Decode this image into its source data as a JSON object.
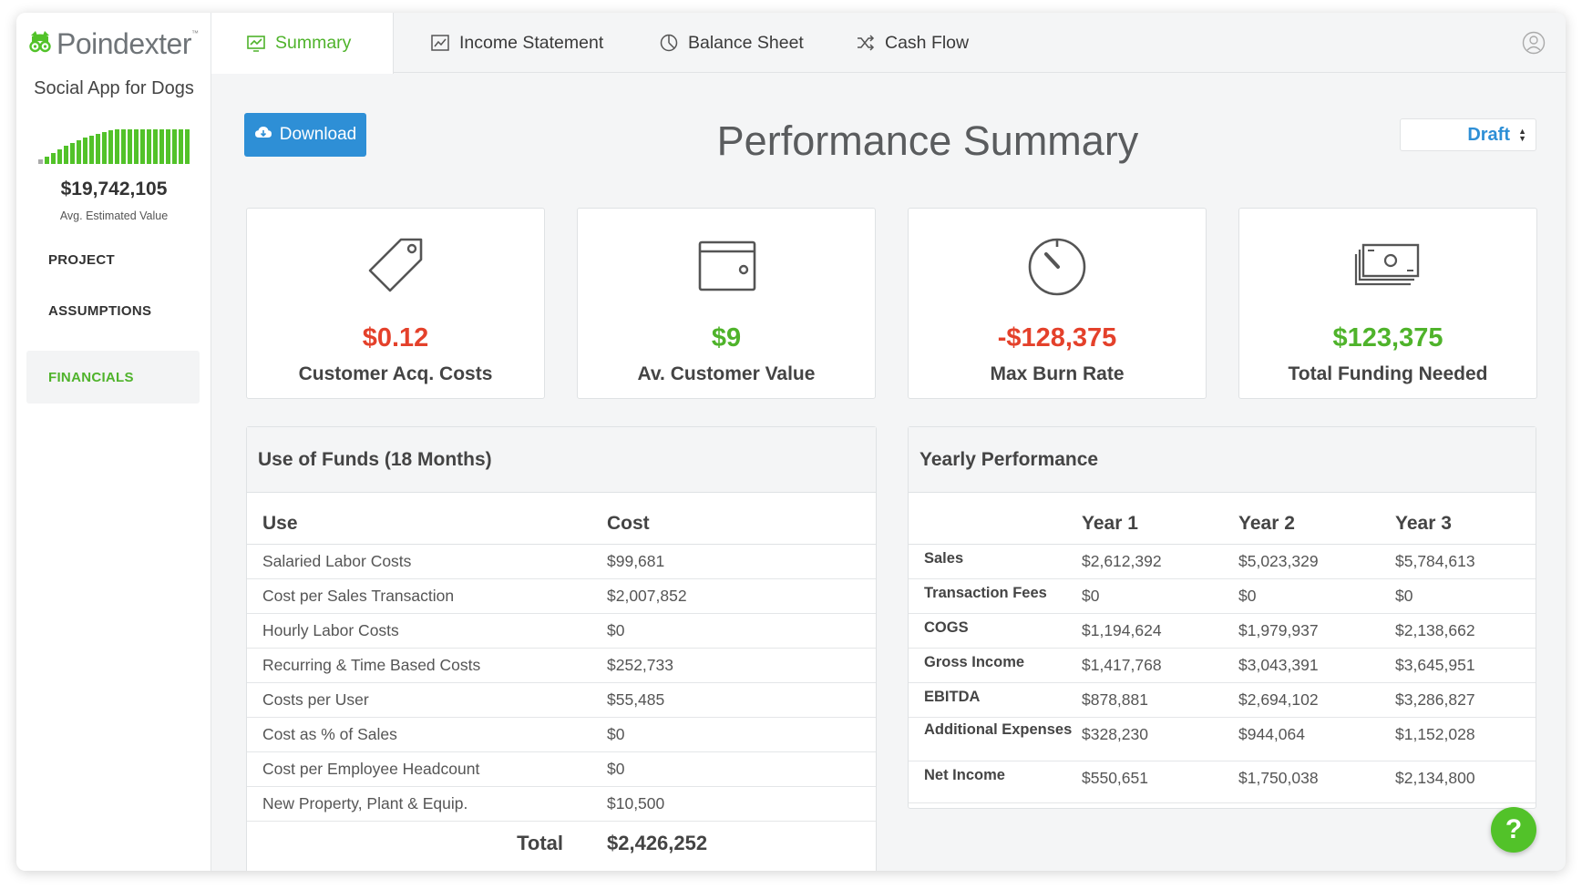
{
  "brand": {
    "name": "Poindexter",
    "tm": "™"
  },
  "project": {
    "name": "Social App for Dogs",
    "value": "$19,742,105",
    "value_label": "Avg. Estimated Value",
    "sparkline_heights": [
      0.12,
      0.22,
      0.32,
      0.42,
      0.52,
      0.6,
      0.68,
      0.76,
      0.82,
      0.88,
      0.93,
      0.97,
      1,
      1,
      1,
      1,
      1,
      1,
      1,
      1,
      1,
      1,
      1,
      1
    ],
    "sparkline_color": "#52c229"
  },
  "sidebar": {
    "items": [
      {
        "label": "PROJECT",
        "active": false
      },
      {
        "label": "ASSUMPTIONS",
        "active": false
      },
      {
        "label": "FINANCIALS",
        "active": true
      }
    ]
  },
  "tabs": [
    {
      "label": "Summary",
      "icon": "summary-icon",
      "active": true
    },
    {
      "label": "Income Statement",
      "icon": "line-chart-icon",
      "active": false
    },
    {
      "label": "Balance Sheet",
      "icon": "pie-chart-icon",
      "active": false
    },
    {
      "label": "Cash Flow",
      "icon": "shuffle-icon",
      "active": false
    }
  ],
  "toolbar": {
    "download_label": "Download",
    "status_value": "Draft"
  },
  "page": {
    "title": "Performance Summary"
  },
  "kpis": [
    {
      "value": "$0.12",
      "label": "Customer Acq. Costs",
      "color": "#e4412b",
      "icon": "price-tag-icon"
    },
    {
      "value": "$9",
      "label": "Av. Customer Value",
      "color": "#4fb32b",
      "icon": "wallet-icon"
    },
    {
      "value": "-$128,375",
      "label": "Max Burn Rate",
      "color": "#e4412b",
      "icon": "gauge-icon"
    },
    {
      "value": "$123,375",
      "label": "Total Funding Needed",
      "color": "#4fb32b",
      "icon": "cash-stack-icon"
    }
  ],
  "use_of_funds": {
    "title": "Use of Funds (18 Months)",
    "headers": [
      "Use",
      "Cost"
    ],
    "rows": [
      [
        "Salaried Labor Costs",
        "$99,681"
      ],
      [
        "Cost per Sales Transaction",
        "$2,007,852"
      ],
      [
        "Hourly Labor Costs",
        "$0"
      ],
      [
        "Recurring & Time Based Costs",
        "$252,733"
      ],
      [
        "Costs per User",
        "$55,485"
      ],
      [
        "Cost as % of Sales",
        "$0"
      ],
      [
        "Cost per Employee Headcount",
        "$0"
      ],
      [
        "New Property, Plant & Equip.",
        "$10,500"
      ]
    ],
    "total_label": "Total",
    "total_value": "$2,426,252"
  },
  "yearly": {
    "title": "Yearly Performance",
    "headers": [
      "",
      "Year 1",
      "Year 2",
      "Year 3"
    ],
    "rows": [
      [
        "Sales",
        "$2,612,392",
        "$5,023,329",
        "$5,784,613"
      ],
      [
        "Transaction Fees",
        "$0",
        "$0",
        "$0"
      ],
      [
        "COGS",
        "$1,194,624",
        "$1,979,937",
        "$2,138,662"
      ],
      [
        "Gross Income",
        "$1,417,768",
        "$3,043,391",
        "$3,645,951"
      ],
      [
        "EBITDA",
        "$878,881",
        "$2,694,102",
        "$3,286,827"
      ],
      [
        "Additional Expenses",
        "$328,230",
        "$944,064",
        "$1,152,028"
      ],
      [
        "Net Income",
        "$550,651",
        "$1,750,038",
        "$2,134,800"
      ]
    ]
  },
  "help": {
    "label": "?"
  }
}
